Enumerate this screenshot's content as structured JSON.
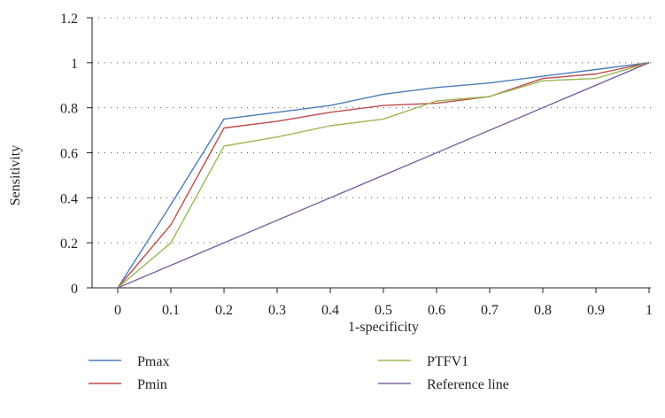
{
  "chart_data": {
    "type": "line",
    "title": "",
    "xlabel": "1-specificity",
    "ylabel": "Sensitivity",
    "xlim": [
      0,
      1
    ],
    "ylim": [
      0,
      1.2
    ],
    "x_ticks": [
      "0",
      "0.1",
      "0.2",
      "0.3",
      "0.4",
      "0.5",
      "0.6",
      "0.7",
      "0.8",
      "0.9",
      "1"
    ],
    "y_ticks": [
      "0",
      "0.2",
      "0.4",
      "0.6",
      "0.8",
      "1",
      "1.2"
    ],
    "y_tick_values": [
      0,
      0.2,
      0.4,
      0.6,
      0.8,
      1.0,
      1.2
    ],
    "grid": "horizontal dotted",
    "legend_position": "bottom",
    "series": [
      {
        "name": "Pmax",
        "color": "#4a7ebb",
        "points": [
          [
            0,
            0
          ],
          [
            0.1,
            0.37
          ],
          [
            0.2,
            0.75
          ],
          [
            0.3,
            0.78
          ],
          [
            0.4,
            0.81
          ],
          [
            0.5,
            0.86
          ],
          [
            0.6,
            0.89
          ],
          [
            0.7,
            0.91
          ],
          [
            0.8,
            0.94
          ],
          [
            0.9,
            0.97
          ],
          [
            1.0,
            1.0
          ]
        ]
      },
      {
        "name": "Pmin",
        "color": "#be4b48",
        "points": [
          [
            0,
            0
          ],
          [
            0.1,
            0.28
          ],
          [
            0.2,
            0.71
          ],
          [
            0.3,
            0.74
          ],
          [
            0.4,
            0.78
          ],
          [
            0.5,
            0.81
          ],
          [
            0.6,
            0.82
          ],
          [
            0.7,
            0.85
          ],
          [
            0.8,
            0.93
          ],
          [
            0.9,
            0.95
          ],
          [
            1.0,
            1.0
          ]
        ]
      },
      {
        "name": "PTFV1",
        "color": "#98b954",
        "points": [
          [
            0,
            0
          ],
          [
            0.1,
            0.2
          ],
          [
            0.2,
            0.63
          ],
          [
            0.3,
            0.67
          ],
          [
            0.4,
            0.72
          ],
          [
            0.5,
            0.75
          ],
          [
            0.6,
            0.83
          ],
          [
            0.7,
            0.85
          ],
          [
            0.8,
            0.92
          ],
          [
            0.9,
            0.93
          ],
          [
            1.0,
            1.0
          ]
        ]
      },
      {
        "name": "Reference line",
        "color": "#8064a2",
        "points": [
          [
            0,
            0
          ],
          [
            1.0,
            1.0
          ]
        ]
      }
    ]
  }
}
